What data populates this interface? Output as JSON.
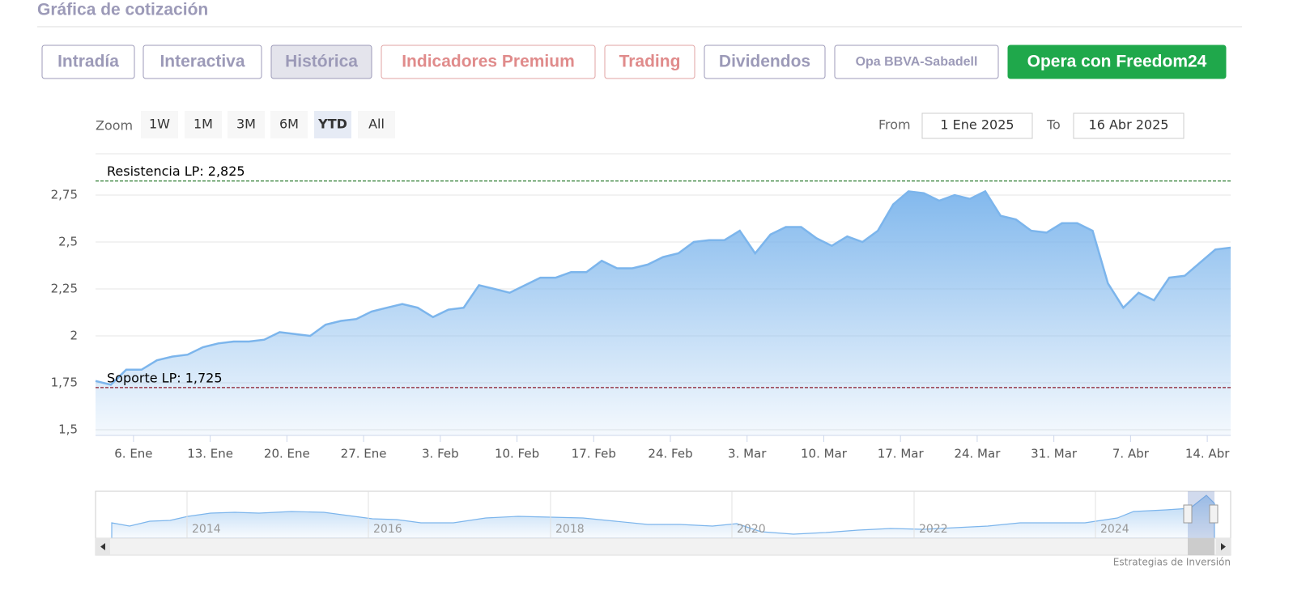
{
  "header": {
    "title": "Gráfica de cotización"
  },
  "tabs": [
    {
      "label": "Intradía",
      "style": "normal"
    },
    {
      "label": "Interactiva",
      "style": "normal"
    },
    {
      "label": "Histórica",
      "style": "active"
    },
    {
      "label": "Indicadores Premium",
      "style": "premium"
    },
    {
      "label": "Trading",
      "style": "premium"
    },
    {
      "label": "Dividendos",
      "style": "normal"
    },
    {
      "label": "Opa BBVA-Sabadell",
      "style": "small"
    },
    {
      "label": "Opera con Freedom24",
      "style": "cta"
    }
  ],
  "range_selector": {
    "label": "Zoom",
    "buttons": [
      {
        "label": "1W",
        "active": false
      },
      {
        "label": "1M",
        "active": false
      },
      {
        "label": "3M",
        "active": false
      },
      {
        "label": "6M",
        "active": false
      },
      {
        "label": "YTD",
        "active": true
      },
      {
        "label": "All",
        "active": false
      }
    ]
  },
  "date_range": {
    "from_label": "From",
    "from": "1 Ene 2025",
    "to_label": "To",
    "to": "16 Abr 2025"
  },
  "chart_data": {
    "type": "area",
    "color": "#7cb5ec",
    "categories": [
      null,
      null,
      "6. Ene",
      null,
      null,
      null,
      null,
      "13. Ene",
      null,
      null,
      null,
      null,
      "20. Ene",
      null,
      null,
      null,
      null,
      "27. Ene",
      null,
      null,
      null,
      null,
      "3. Feb",
      null,
      null,
      null,
      null,
      "10. Feb",
      null,
      null,
      null,
      null,
      "17. Feb",
      null,
      null,
      null,
      null,
      "24. Feb",
      null,
      null,
      null,
      null,
      "3. Mar",
      null,
      null,
      null,
      null,
      "10. Mar",
      null,
      null,
      null,
      null,
      "17. Mar",
      null,
      null,
      null,
      null,
      "24. Mar",
      null,
      null,
      null,
      null,
      "31. Mar",
      null,
      null,
      null,
      null,
      "7. Abr",
      null,
      null,
      null,
      null,
      "14. Abr",
      null,
      null
    ],
    "values": [
      1.76,
      1.74,
      1.82,
      1.82,
      1.87,
      1.89,
      1.9,
      1.94,
      1.96,
      1.97,
      1.97,
      1.98,
      2.02,
      2.01,
      2.0,
      2.06,
      2.08,
      2.09,
      2.13,
      2.15,
      2.17,
      2.15,
      2.1,
      2.14,
      2.15,
      2.27,
      2.25,
      2.23,
      2.27,
      2.31,
      2.31,
      2.34,
      2.34,
      2.4,
      2.36,
      2.36,
      2.38,
      2.42,
      2.44,
      2.5,
      2.51,
      2.51,
      2.56,
      2.44,
      2.54,
      2.58,
      2.58,
      2.52,
      2.48,
      2.53,
      2.5,
      2.56,
      2.7,
      2.77,
      2.76,
      2.72,
      2.75,
      2.73,
      2.77,
      2.64,
      2.62,
      2.56,
      2.55,
      2.6,
      2.6,
      2.56,
      2.28,
      2.15,
      2.23,
      2.19,
      2.31,
      2.32,
      2.39,
      2.46,
      2.47
    ],
    "ylim": [
      1.47,
      2.97
    ],
    "yticks": [
      {
        "value": 1.5,
        "label": "1,5"
      },
      {
        "value": 1.75,
        "label": "1,75"
      },
      2,
      {
        "value": 2.25,
        "label": "2,25"
      },
      {
        "value": 2.5,
        "label": "2,5"
      },
      {
        "value": 2.75,
        "label": "2,75"
      }
    ],
    "grid": true,
    "plot_lines": [
      {
        "value": 2.825,
        "label": "Resistencia LP: 2,825",
        "color": "#2e7d32"
      },
      {
        "value": 1.725,
        "label": "Soporte LP: 1,725",
        "color": "#8b1a2b"
      }
    ]
  },
  "navigator": {
    "labels": [
      "2014",
      "2016",
      "2018",
      "2020",
      "2022",
      "2024"
    ]
  },
  "footer": {
    "credit": "Estrategias de Inversión"
  }
}
